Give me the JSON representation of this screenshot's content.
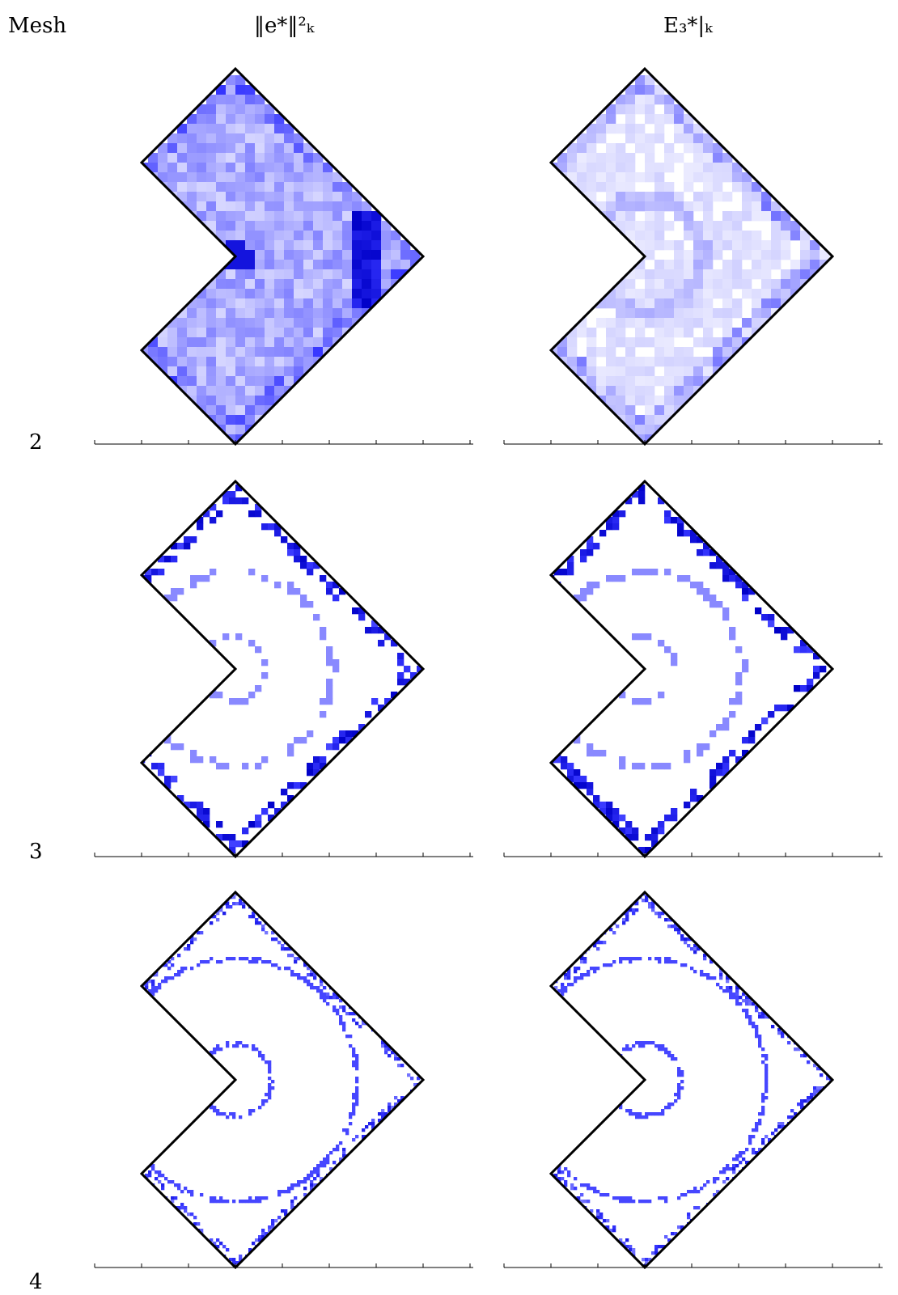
{
  "header": {
    "mesh_label": "Mesh",
    "col1_label": "‖e*‖²ₖ",
    "col2_label": "E₃*|ₖ"
  },
  "rows": [
    {
      "mesh": "2"
    },
    {
      "mesh": "3"
    },
    {
      "mesh": "4"
    }
  ],
  "colors": {
    "outline": "#000000",
    "low": "#ffffff",
    "high": "#0000cc",
    "mid": "#3535ff"
  }
}
